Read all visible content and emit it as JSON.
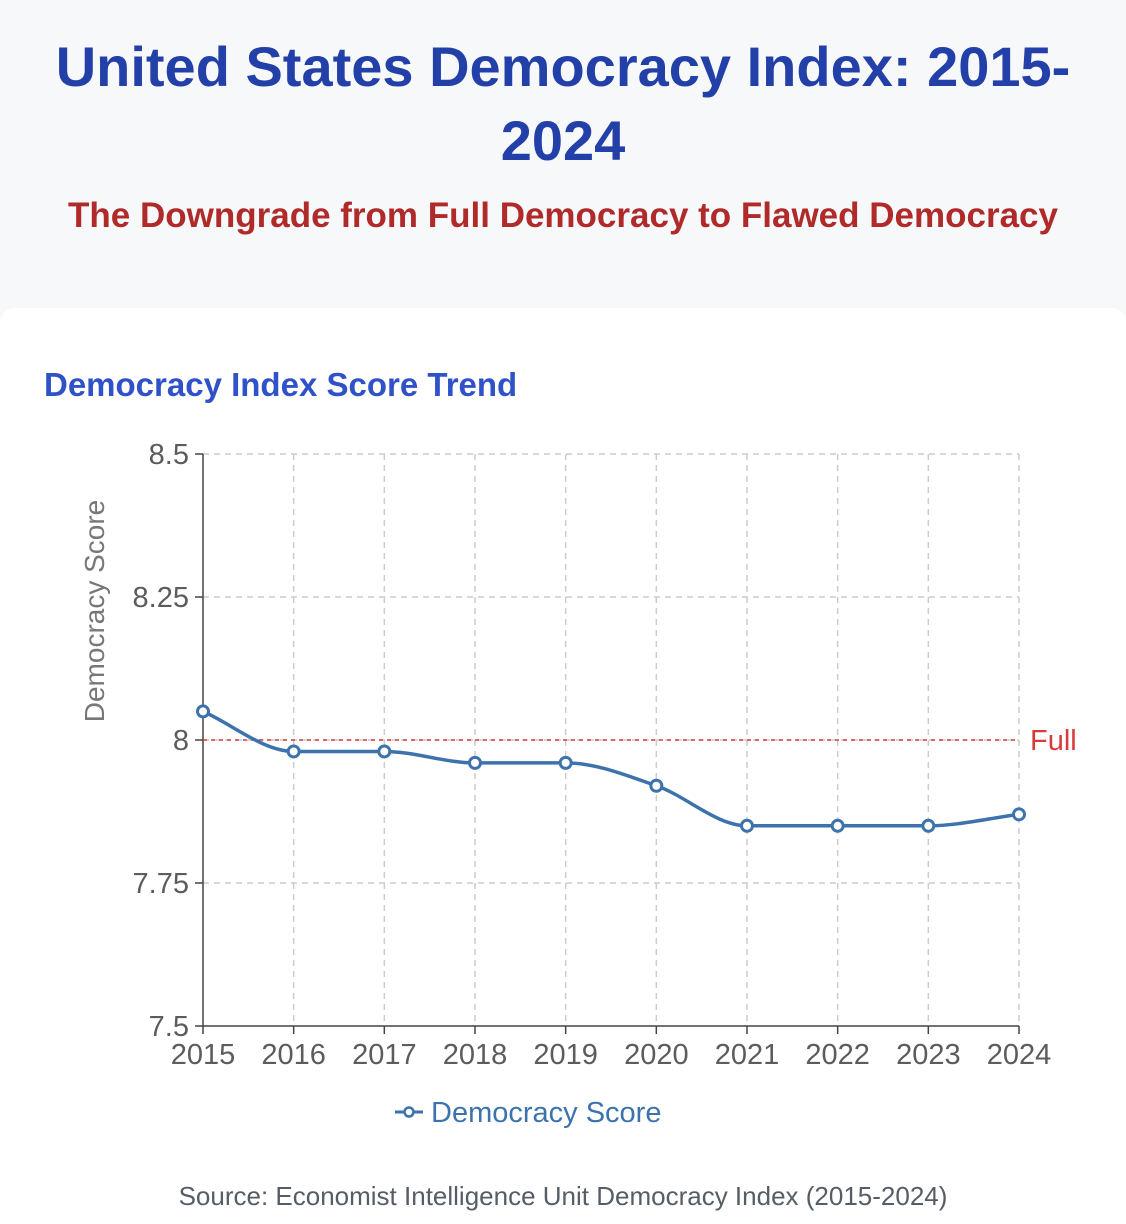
{
  "header": {
    "title": "United States Democracy Index: 2015-2024",
    "subtitle": "The Downgrade from Full Democracy to Flawed Democracy"
  },
  "chart_heading": "Democracy Index Score Trend",
  "source": "Source: Economist Intelligence Unit Democracy Index (2015-2024)",
  "colors": {
    "title": "#233fa8",
    "subtitle": "#b02a2a",
    "heading": "#2f52c9",
    "series": "#3d73ad",
    "reference": "#d93a3a",
    "grid": "#cccccc"
  },
  "chart_data": {
    "type": "line",
    "title": "Democracy Index Score Trend",
    "xlabel": "",
    "ylabel": "Democracy Score",
    "categories": [
      "2015",
      "2016",
      "2017",
      "2018",
      "2019",
      "2020",
      "2021",
      "2022",
      "2023",
      "2024"
    ],
    "series": [
      {
        "name": "Democracy Score",
        "values": [
          8.05,
          7.98,
          7.98,
          7.96,
          7.96,
          7.92,
          7.85,
          7.85,
          7.85,
          7.87
        ]
      }
    ],
    "ylim": [
      7.5,
      8.5
    ],
    "yticks": [
      7.5,
      7.75,
      8,
      8.25,
      8.5
    ],
    "ytick_labels": [
      "7.5",
      "7.75",
      "8",
      "8.25",
      "8.5"
    ],
    "reference_line": {
      "value": 8,
      "label": "Full",
      "style": "dashed"
    },
    "grid": true,
    "legend": "bottom-center"
  }
}
